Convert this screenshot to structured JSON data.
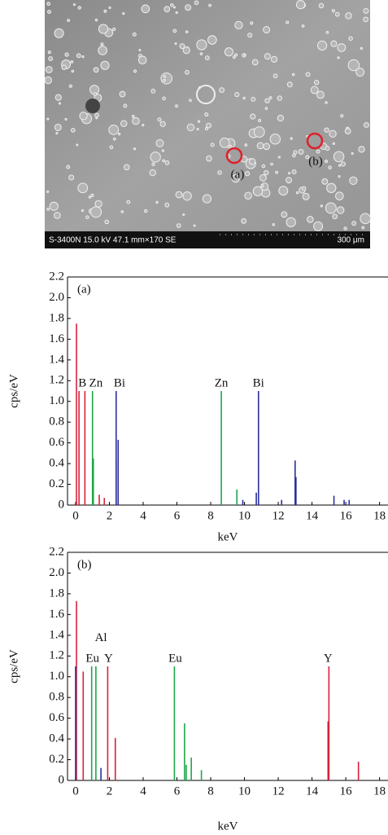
{
  "image": {
    "info": "S-3400N 15.0 kV 47.1 mm×170 SE",
    "scale": "300 μm",
    "markers": [
      "(a)",
      "(b)"
    ]
  },
  "chart_data": [
    {
      "type": "stem",
      "panel": "(a)",
      "x_label": "keV",
      "y_label": "cps/eV",
      "xlim": [
        -0.48,
        18.5
      ],
      "ylim": [
        0,
        2.2
      ],
      "xticks": [
        0,
        2,
        4,
        6,
        8,
        10,
        12,
        14,
        16,
        18
      ],
      "yticks": [
        0,
        0.2,
        0.4,
        0.6,
        0.8,
        {
          "value": 1,
          "label": "1.0"
        },
        1.2,
        1.4,
        1.6,
        1.8,
        {
          "value": 2,
          "label": "2.0"
        },
        2.2
      ],
      "series": [
        {
          "name": "B",
          "color": "#d9213a",
          "x": [
            0.05,
            0.2,
            0.55,
            1.4,
            1.7,
            2.4
          ],
          "values": [
            1.75,
            1.1,
            1.1,
            0.1,
            0.07,
            0.42
          ]
        },
        {
          "name": "Zn",
          "color": "#1fa64a",
          "x": [
            1.0,
            1.05,
            8.63,
            9.55
          ],
          "values": [
            1.1,
            0.45,
            1.1,
            0.15
          ]
        },
        {
          "name": "Bi",
          "color": "#2b2f9c",
          "x": [
            2.4,
            2.52,
            9.9,
            10.7,
            10.83,
            12.2,
            13.0,
            13.05,
            15.3,
            15.9,
            16.2
          ],
          "values": [
            1.1,
            0.63,
            0.05,
            0.12,
            1.1,
            0.05,
            0.43,
            0.27,
            0.09,
            0.05,
            0.05
          ]
        }
      ],
      "annotations": [
        {
          "text": "B",
          "x": 0.4,
          "y": 1.1
        },
        {
          "text": "Zn",
          "x": 1.2,
          "y": 1.1
        },
        {
          "text": "Bi",
          "x": 2.6,
          "y": 1.1
        },
        {
          "text": "Zn",
          "x": 8.63,
          "y": 1.1
        },
        {
          "text": "Bi",
          "x": 10.83,
          "y": 1.1
        }
      ]
    },
    {
      "type": "stem",
      "panel": "(b)",
      "x_label": "keV",
      "y_label": "cps/eV",
      "xlim": [
        -0.48,
        18.5
      ],
      "ylim": [
        0,
        2.2
      ],
      "xticks": [
        0,
        2,
        4,
        6,
        8,
        10,
        12,
        14,
        16,
        18
      ],
      "yticks": [
        0,
        0.2,
        0.4,
        0.6,
        0.8,
        {
          "value": 1,
          "label": "1.0"
        },
        1.2,
        1.4,
        1.6,
        1.8,
        {
          "value": 2,
          "label": "2.0"
        },
        2.2
      ],
      "series": [
        {
          "name": "Y",
          "color": "#d9213a",
          "x": [
            0.05,
            0.45,
            1.9,
            2.35,
            14.95,
            15.0,
            16.75
          ],
          "values": [
            1.73,
            1.05,
            1.1,
            0.41,
            0.57,
            1.1,
            0.18
          ]
        },
        {
          "name": "Eu",
          "color": "#1fa64a",
          "x": [
            0.95,
            1.2,
            5.85,
            6.45,
            6.55,
            6.85,
            7.45
          ],
          "values": [
            1.1,
            1.1,
            1.1,
            0.55,
            0.15,
            0.22,
            0.1
          ]
        },
        {
          "name": "Al",
          "color": "#2b2f9c",
          "x": [
            0.0,
            1.5
          ],
          "values": [
            1.1,
            0.12
          ]
        }
      ],
      "annotations": [
        {
          "text": "Eu",
          "x": 1.0,
          "y": 1.1
        },
        {
          "text": "Al",
          "x": 1.5,
          "y": 1.3
        },
        {
          "text": "Y",
          "x": 1.95,
          "y": 1.1
        },
        {
          "text": "Eu",
          "x": 5.9,
          "y": 1.1
        },
        {
          "text": "Y",
          "x": 14.95,
          "y": 1.1
        }
      ]
    }
  ]
}
